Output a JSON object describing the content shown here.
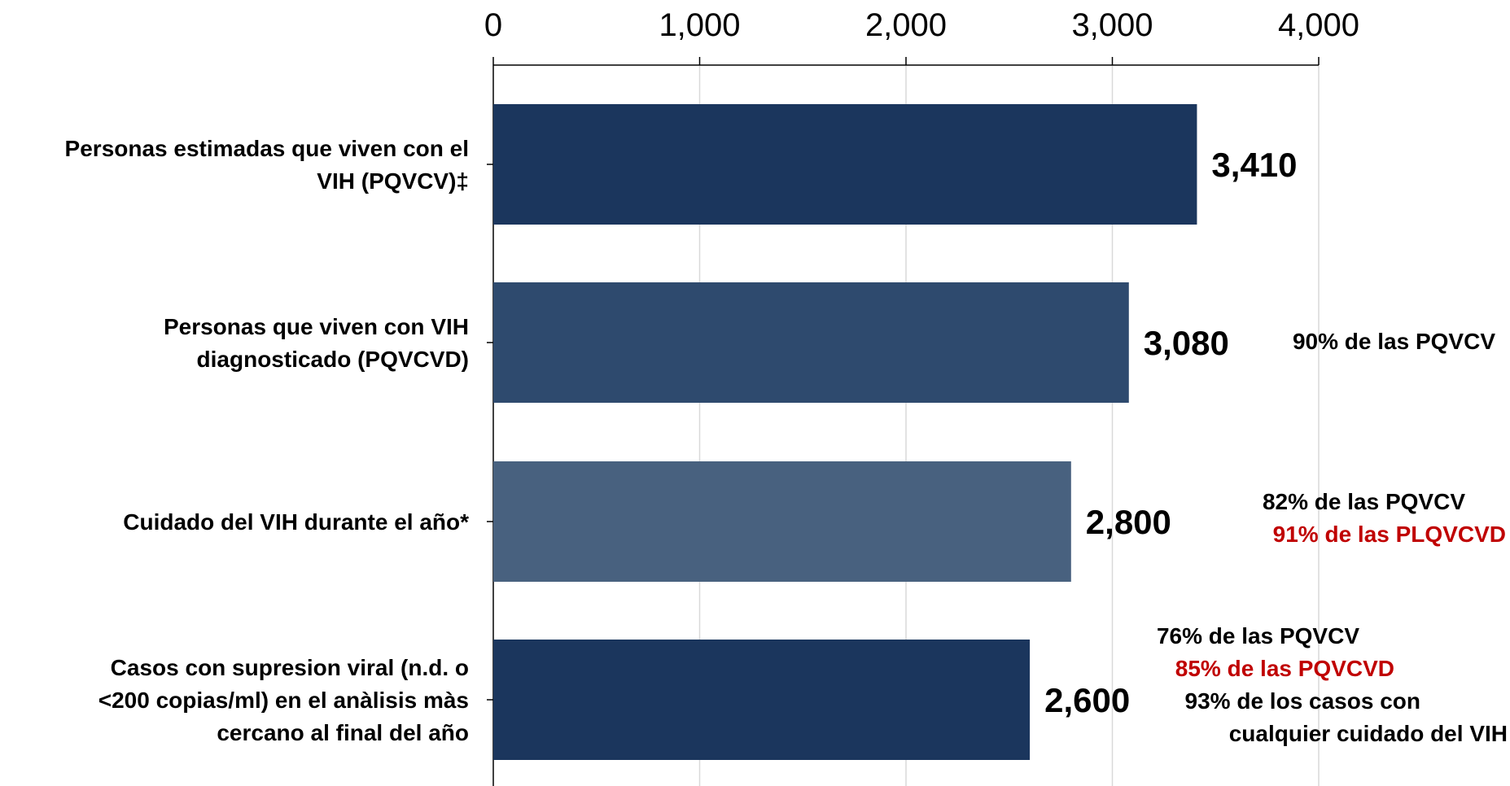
{
  "chart_data": {
    "type": "bar",
    "orientation": "horizontal",
    "xlim": [
      0,
      4000
    ],
    "ticks": [
      "0",
      "1,000",
      "2,000",
      "3,000",
      "4,000"
    ],
    "tick_values": [
      0,
      1000,
      2000,
      3000,
      4000
    ],
    "grid": true,
    "axis_position": "top",
    "categories": [
      [
        "Personas estimadas que viven con el",
        "VIH (PQVCV)‡"
      ],
      [
        "Personas que viven con VIH",
        "diagnosticado (PQVCVD)"
      ],
      [
        "Cuidado del VIH durante el año*"
      ],
      [
        "Casos con supresion viral (n.d. o",
        "<200 copias/ml) en el anàlisis màs",
        "cercano al final del año"
      ]
    ],
    "values": [
      3410,
      3080,
      2800,
      2600
    ],
    "value_labels": [
      "3,410",
      "3,080",
      "2,800",
      "2,600"
    ],
    "bar_colors": [
      "#1b365d",
      "#2e4a6e",
      "#48617f",
      "#1b365d"
    ],
    "annotations": [
      [],
      [
        {
          "text": "90% de las PQVCV",
          "color": "#000000"
        }
      ],
      [
        {
          "text": "82% de las PQVCV",
          "color": "#000000"
        },
        {
          "text": "91% de las PLQVCVD",
          "color": "#c00000"
        }
      ],
      [
        {
          "text": "76% de las PQVCV",
          "color": "#000000"
        },
        {
          "text": "85% de las PQVCVD",
          "color": "#c00000"
        },
        {
          "text": "93% de los casos con",
          "color": "#000000"
        },
        {
          "text": "cualquier cuidado del VIH",
          "color": "#000000"
        }
      ]
    ]
  }
}
